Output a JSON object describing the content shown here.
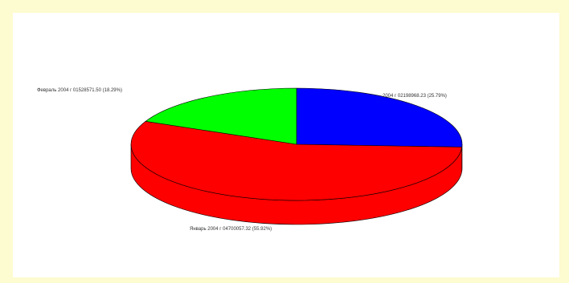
{
  "chart_data": {
    "type": "pie",
    "style": "3d",
    "slices": [
      {
        "label": "2004 г 02198968.23 (25.79%)",
        "value": 25.79,
        "color": "#0000ff"
      },
      {
        "label": "Январь 2004 г 04700057.32 (55.92%)",
        "value": 55.92,
        "color": "#ff0000"
      },
      {
        "label": "Февраль 2004 г 01528571.50 (18.29%)",
        "value": 18.29,
        "color": "#00ff00"
      }
    ],
    "depth_color": "#cc0000"
  }
}
